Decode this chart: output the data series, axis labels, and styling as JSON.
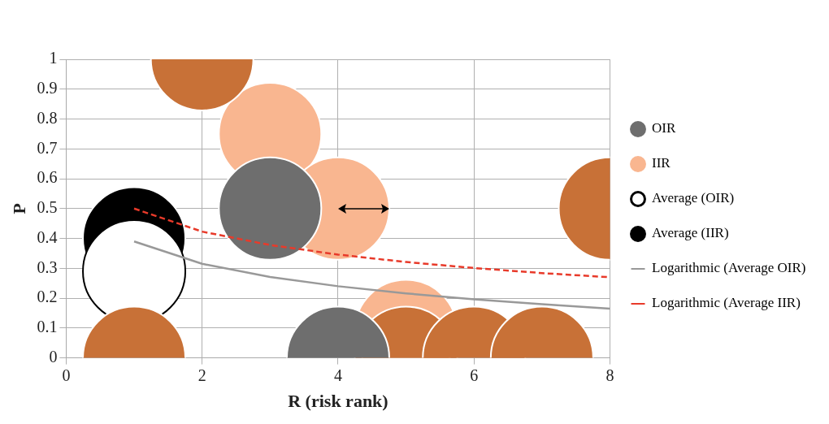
{
  "chart_data": {
    "type": "bubble",
    "xlabel": "R (risk rank)",
    "ylabel": "P",
    "xlim": [
      0,
      8
    ],
    "ylim": [
      0,
      1
    ],
    "xticks": [
      0,
      2,
      4,
      6,
      8
    ],
    "yticks": [
      0,
      0.1,
      0.2,
      0.3,
      0.4,
      0.5,
      0.6,
      0.7,
      0.8,
      0.9,
      1
    ],
    "grid": true,
    "legend": "right",
    "series": [
      {
        "name": "OIR",
        "color": "#6e6e6e",
        "x": [
          3,
          4
        ],
        "values": [
          0.5,
          0
        ],
        "sizes": [
          1,
          1
        ]
      },
      {
        "name": "IIR",
        "color": "#f9b690",
        "x": [
          3,
          4,
          5,
          2,
          1,
          8,
          5,
          6,
          7
        ],
        "values": [
          0.75,
          0.5,
          0.09,
          1,
          0,
          0.5,
          0,
          0,
          0
        ],
        "sizes": [
          1,
          1,
          1,
          1,
          1,
          1,
          1,
          1,
          1
        ],
        "colors": [
          "#f9b690",
          "#f9b690",
          "#f9b690",
          "#c87137",
          "#c87137",
          "#c87137",
          "#c87137",
          "#c87137",
          "#c87137"
        ]
      },
      {
        "name": "Average (OIR)",
        "color": "#ffffff",
        "x": [
          1
        ],
        "values": [
          0.29
        ],
        "sizes": [
          1
        ]
      },
      {
        "name": "Average (IIR)",
        "color": "#000000",
        "x": [
          1
        ],
        "values": [
          0.4
        ],
        "sizes": [
          1
        ]
      },
      {
        "name": "Logarithmic (Average OIR)",
        "type": "line",
        "color": "#999999",
        "line_style": "solid",
        "x": [
          1,
          2,
          3,
          4,
          5,
          6,
          7,
          8
        ],
        "values": [
          0.39,
          0.315,
          0.271,
          0.24,
          0.216,
          0.196,
          0.18,
          0.165
        ]
      },
      {
        "name": "Logarithmic (Average IIR)",
        "type": "line",
        "color": "#e83a2a",
        "line_style": "dashed",
        "x": [
          1,
          2,
          3,
          4,
          5,
          6,
          7,
          8
        ],
        "values": [
          0.5,
          0.423,
          0.378,
          0.346,
          0.321,
          0.301,
          0.284,
          0.27
        ]
      }
    ]
  }
}
